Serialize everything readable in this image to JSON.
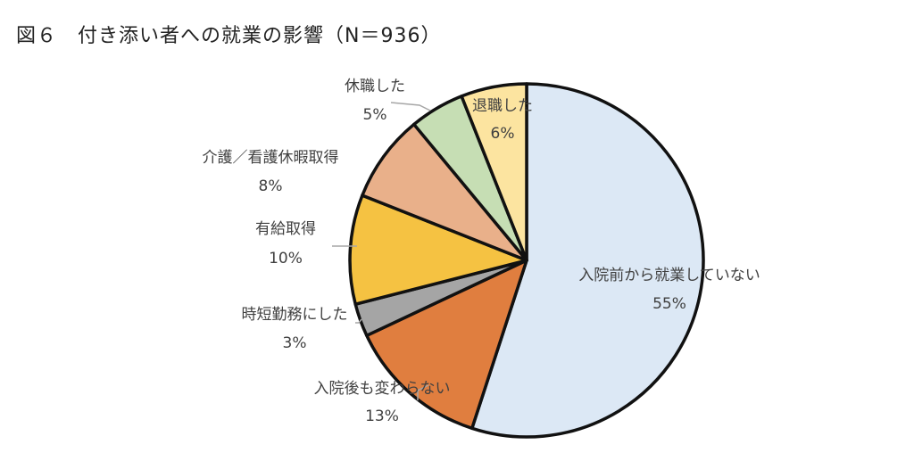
{
  "chart_data": {
    "type": "pie",
    "title": "図６　付き添い者への就業の影響（N＝936）",
    "slices": [
      {
        "label": "入院前から就業していない",
        "value": 55,
        "value_label": "55%",
        "color": "#dce8f5"
      },
      {
        "label": "入院後も変わらない",
        "value": 13,
        "value_label": "13%",
        "color": "#e07e3f"
      },
      {
        "label": "時短勤務にした",
        "value": 3,
        "value_label": "3%",
        "color": "#a5a5a5"
      },
      {
        "label": "有給取得",
        "value": 10,
        "value_label": "10%",
        "color": "#f5c242"
      },
      {
        "label": "介護／看護休暇取得",
        "value": 8,
        "value_label": "8%",
        "color": "#e9b08a"
      },
      {
        "label": "休職した",
        "value": 5,
        "value_label": "5%",
        "color": "#c6deb4"
      },
      {
        "label": "退職した",
        "value": 6,
        "value_label": "6%",
        "color": "#fce4a0"
      }
    ]
  }
}
